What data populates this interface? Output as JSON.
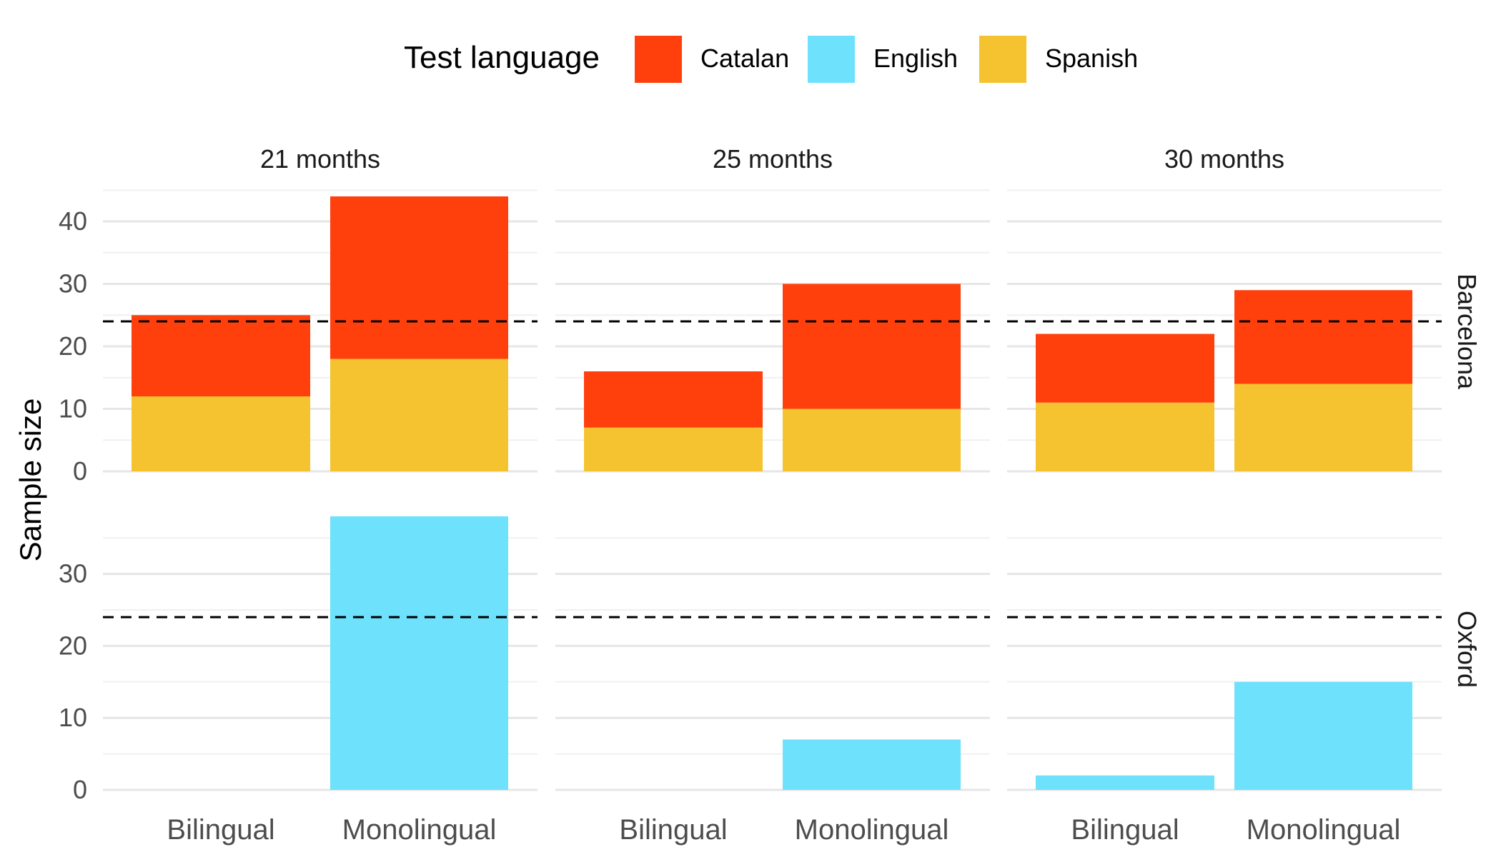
{
  "chart_data": {
    "type": "bar",
    "stacked": true,
    "ylabel": "Sample size",
    "legend": {
      "title": "Test language",
      "placement": "top",
      "items": [
        {
          "name": "Catalan",
          "color": "#FF400D"
        },
        {
          "name": "English",
          "color": "#6EE1FC"
        },
        {
          "name": "Spanish",
          "color": "#F5C330"
        }
      ]
    },
    "stack_order": [
      "Spanish",
      "English",
      "Catalan"
    ],
    "columns": [
      "21 months",
      "25 months",
      "30 months"
    ],
    "rows": [
      "Barcelona",
      "Oxford"
    ],
    "categories": [
      "Bilingual",
      "Monolingual"
    ],
    "reference_line": {
      "y": 24,
      "style": "dashed",
      "color": "#000000"
    },
    "grid": true,
    "panels": [
      {
        "row": "Barcelona",
        "column": "21 months",
        "ylim": [
          0,
          45
        ],
        "yticks": [
          0,
          10,
          20,
          30,
          40
        ],
        "series": [
          {
            "name": "Spanish",
            "values": [
              12,
              18
            ]
          },
          {
            "name": "Catalan",
            "values": [
              13,
              26
            ]
          }
        ]
      },
      {
        "row": "Barcelona",
        "column": "25 months",
        "ylim": [
          0,
          45
        ],
        "yticks": [
          0,
          10,
          20,
          30,
          40
        ],
        "series": [
          {
            "name": "Spanish",
            "values": [
              7,
              10
            ]
          },
          {
            "name": "Catalan",
            "values": [
              9,
              20
            ]
          }
        ]
      },
      {
        "row": "Barcelona",
        "column": "30 months",
        "ylim": [
          0,
          45
        ],
        "yticks": [
          0,
          10,
          20,
          30,
          40
        ],
        "series": [
          {
            "name": "Spanish",
            "values": [
              11,
              14
            ]
          },
          {
            "name": "Catalan",
            "values": [
              11,
              15
            ]
          }
        ]
      },
      {
        "row": "Oxford",
        "column": "21 months",
        "ylim": [
          0,
          38
        ],
        "yticks": [
          0,
          10,
          20,
          30
        ],
        "series": [
          {
            "name": "English",
            "values": [
              0,
              38
            ]
          }
        ]
      },
      {
        "row": "Oxford",
        "column": "25 months",
        "ylim": [
          0,
          38
        ],
        "yticks": [
          0,
          10,
          20,
          30
        ],
        "series": [
          {
            "name": "English",
            "values": [
              0,
              7
            ]
          }
        ]
      },
      {
        "row": "Oxford",
        "column": "30 months",
        "ylim": [
          0,
          38
        ],
        "yticks": [
          0,
          10,
          20,
          30
        ],
        "series": [
          {
            "name": "English",
            "values": [
              2,
              15
            ]
          }
        ]
      }
    ]
  }
}
